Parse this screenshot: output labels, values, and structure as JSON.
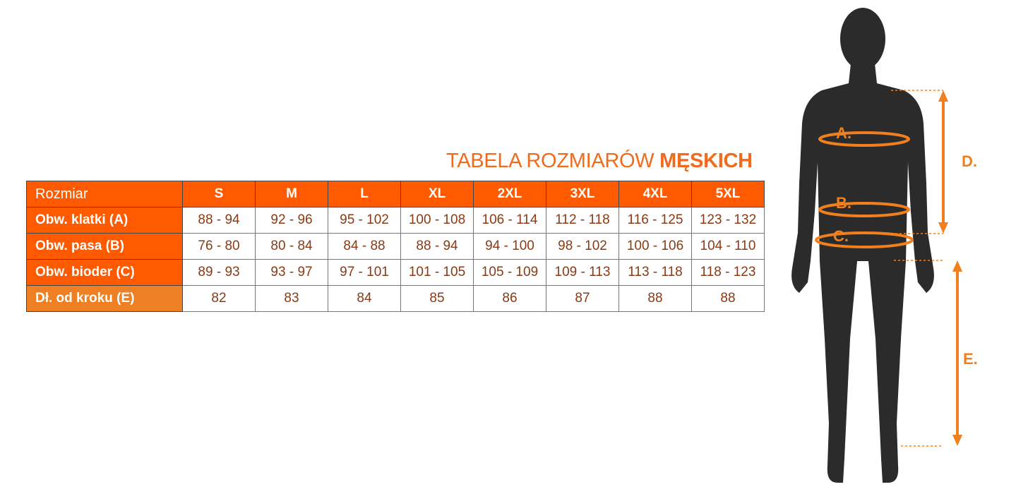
{
  "title": {
    "normal": "TABELA ROZMIARÓW ",
    "bold": "MĘSKICH"
  },
  "table": {
    "corner": "Rozmiar",
    "sizes": [
      "S",
      "M",
      "L",
      "XL",
      "2XL",
      "3XL",
      "4XL",
      "5XL"
    ],
    "rows": [
      {
        "label": "Obw. klatki (A)",
        "values": [
          "88 - 94",
          "92 - 96",
          "95 - 102",
          "100 - 108",
          "106 - 114",
          "112 - 118",
          "116 - 125",
          "123 - 132"
        ]
      },
      {
        "label": "Obw. pasa (B)",
        "values": [
          "76 - 80",
          "80 - 84",
          "84 - 88",
          "88 - 94",
          "94 - 100",
          "98 - 102",
          "100 - 106",
          "104 - 110"
        ]
      },
      {
        "label": "Obw. bioder (C)",
        "values": [
          "89 - 93",
          "93 - 97",
          "97 - 101",
          "101 - 105",
          "105 - 109",
          "109 - 113",
          "113 - 118",
          "118 - 123"
        ]
      },
      {
        "label": "Dł. od kroku (E)",
        "values": [
          "82",
          "83",
          "84",
          "85",
          "86",
          "87",
          "88",
          "88"
        ]
      }
    ]
  },
  "figure": {
    "labels": {
      "a": "A.",
      "b": "B.",
      "c": "C.",
      "d": "D.",
      "e": "E."
    }
  },
  "colors": {
    "accent": "#ff5a00",
    "accent_light": "#ee7f22",
    "value_text": "#8a3a14",
    "silhouette": "#2b2b2b",
    "measure": "#f07f1e"
  }
}
